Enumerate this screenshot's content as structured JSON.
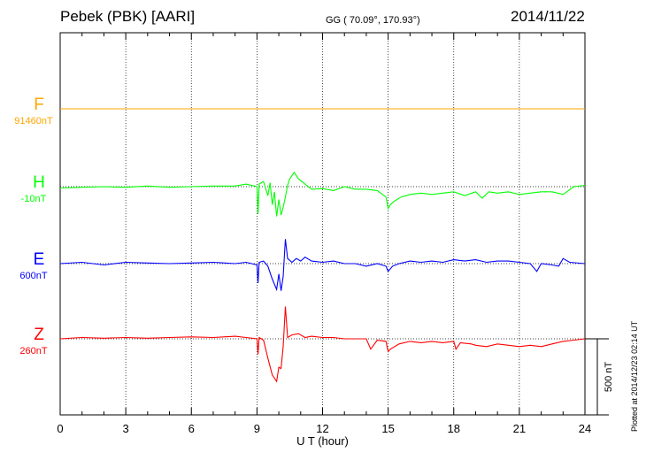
{
  "header": {
    "title": "Pebek (PBK)  [AARI]",
    "coordinates": "GG ( 70.09°, 170.93°)",
    "date": "2014/11/22"
  },
  "footer": {
    "plotted": "Plotted at 2014/12/23 02:14 UT"
  },
  "chart_data": {
    "type": "line",
    "title": "Pebek (PBK)  [AARI]",
    "xlabel": "U T (hour)",
    "ylabel": "",
    "xlim": [
      0,
      24
    ],
    "xticks": [
      0,
      3,
      6,
      9,
      12,
      15,
      18,
      21,
      24
    ],
    "grid": true,
    "scale_bar_label": "500 nT",
    "scale_bar_nT": 500,
    "series": [
      {
        "name": "F",
        "baseline_label": "91460nT",
        "color": "#ffa500",
        "points": [
          [
            0,
            0
          ],
          [
            24,
            0
          ]
        ]
      },
      {
        "name": "H",
        "baseline_label": "-10nT",
        "color": "#00ff00",
        "points": [
          [
            0,
            -10
          ],
          [
            1,
            -5
          ],
          [
            2,
            0
          ],
          [
            3,
            -5
          ],
          [
            4,
            5
          ],
          [
            5,
            -5
          ],
          [
            6,
            0
          ],
          [
            7,
            5
          ],
          [
            8,
            5
          ],
          [
            8.5,
            20
          ],
          [
            9,
            0
          ],
          [
            9.05,
            -210
          ],
          [
            9.1,
            20
          ],
          [
            9.3,
            40
          ],
          [
            9.5,
            -70
          ],
          [
            9.6,
            30
          ],
          [
            9.7,
            -140
          ],
          [
            9.8,
            -40
          ],
          [
            9.9,
            -230
          ],
          [
            10,
            -100
          ],
          [
            10.1,
            -220
          ],
          [
            10.2,
            -160
          ],
          [
            10.3,
            -80
          ],
          [
            10.4,
            10
          ],
          [
            10.5,
            60
          ],
          [
            10.7,
            110
          ],
          [
            10.9,
            60
          ],
          [
            11.2,
            20
          ],
          [
            11.5,
            -20
          ],
          [
            12,
            -15
          ],
          [
            12.5,
            -30
          ],
          [
            13,
            0
          ],
          [
            13.5,
            -20
          ],
          [
            14,
            -20
          ],
          [
            14.5,
            -30
          ],
          [
            14.9,
            -80
          ],
          [
            15.0,
            -170
          ],
          [
            15.1,
            -140
          ],
          [
            15.3,
            -110
          ],
          [
            15.6,
            -80
          ],
          [
            16,
            -60
          ],
          [
            16.5,
            -50
          ],
          [
            17,
            -60
          ],
          [
            17.5,
            -50
          ],
          [
            18,
            -40
          ],
          [
            18.5,
            -70
          ],
          [
            19,
            -40
          ],
          [
            19.3,
            -90
          ],
          [
            19.6,
            -40
          ],
          [
            20,
            -50
          ],
          [
            20.5,
            -40
          ],
          [
            21,
            -60
          ],
          [
            21.5,
            -50
          ],
          [
            22,
            -40
          ],
          [
            22.5,
            -40
          ],
          [
            23,
            -60
          ],
          [
            23.5,
            0
          ],
          [
            24,
            10
          ]
        ]
      },
      {
        "name": "E",
        "baseline_label": "600nT",
        "color": "#0000ff",
        "points": [
          [
            0,
            0
          ],
          [
            1,
            10
          ],
          [
            2,
            -10
          ],
          [
            3,
            10
          ],
          [
            4,
            5
          ],
          [
            5,
            0
          ],
          [
            6,
            5
          ],
          [
            7,
            10
          ],
          [
            8,
            0
          ],
          [
            8.5,
            10
          ],
          [
            9,
            -10
          ],
          [
            9.05,
            -150
          ],
          [
            9.1,
            10
          ],
          [
            9.3,
            20
          ],
          [
            9.5,
            -20
          ],
          [
            9.7,
            -120
          ],
          [
            9.9,
            -200
          ],
          [
            10.0,
            -80
          ],
          [
            10.1,
            -210
          ],
          [
            10.2,
            -100
          ],
          [
            10.3,
            190
          ],
          [
            10.4,
            40
          ],
          [
            10.6,
            10
          ],
          [
            10.8,
            40
          ],
          [
            11,
            20
          ],
          [
            11.2,
            50
          ],
          [
            11.5,
            20
          ],
          [
            12,
            10
          ],
          [
            12.5,
            20
          ],
          [
            13,
            0
          ],
          [
            13.5,
            0
          ],
          [
            14,
            -20
          ],
          [
            14.5,
            0
          ],
          [
            14.9,
            -20
          ],
          [
            15,
            -60
          ],
          [
            15.2,
            -20
          ],
          [
            15.5,
            0
          ],
          [
            16,
            20
          ],
          [
            16.5,
            10
          ],
          [
            17,
            20
          ],
          [
            17.5,
            10
          ],
          [
            18,
            30
          ],
          [
            18.5,
            20
          ],
          [
            19,
            30
          ],
          [
            19.5,
            10
          ],
          [
            20,
            20
          ],
          [
            20.5,
            20
          ],
          [
            21,
            10
          ],
          [
            21.5,
            0
          ],
          [
            21.8,
            -60
          ],
          [
            22,
            0
          ],
          [
            22.5,
            -10
          ],
          [
            22.8,
            -20
          ],
          [
            23,
            40
          ],
          [
            23.3,
            10
          ],
          [
            24,
            0
          ]
        ]
      },
      {
        "name": "Z",
        "baseline_label": "260nT",
        "color": "#ff0000",
        "points": [
          [
            0,
            0
          ],
          [
            1,
            10
          ],
          [
            2,
            5
          ],
          [
            3,
            10
          ],
          [
            4,
            5
          ],
          [
            5,
            10
          ],
          [
            6,
            15
          ],
          [
            7,
            10
          ],
          [
            8,
            20
          ],
          [
            8.5,
            10
          ],
          [
            9,
            0
          ],
          [
            9.05,
            -120
          ],
          [
            9.1,
            10
          ],
          [
            9.3,
            -10
          ],
          [
            9.5,
            -150
          ],
          [
            9.7,
            -280
          ],
          [
            9.9,
            -330
          ],
          [
            10.0,
            -220
          ],
          [
            10.1,
            -230
          ],
          [
            10.2,
            -60
          ],
          [
            10.3,
            250
          ],
          [
            10.4,
            10
          ],
          [
            10.6,
            30
          ],
          [
            10.9,
            40
          ],
          [
            11.2,
            10
          ],
          [
            11.5,
            20
          ],
          [
            12,
            10
          ],
          [
            12.5,
            10
          ],
          [
            13,
            0
          ],
          [
            13.5,
            0
          ],
          [
            14,
            0
          ],
          [
            14.2,
            -80
          ],
          [
            14.5,
            -10
          ],
          [
            14.9,
            -20
          ],
          [
            15,
            -100
          ],
          [
            15.1,
            -80
          ],
          [
            15.5,
            -40
          ],
          [
            16,
            -20
          ],
          [
            16.5,
            -30
          ],
          [
            17,
            -20
          ],
          [
            17.5,
            -30
          ],
          [
            18,
            -20
          ],
          [
            18.1,
            -80
          ],
          [
            18.3,
            -30
          ],
          [
            18.8,
            -40
          ],
          [
            19,
            -50
          ],
          [
            19.5,
            -60
          ],
          [
            20,
            -40
          ],
          [
            20.5,
            -50
          ],
          [
            21,
            -60
          ],
          [
            21.5,
            -50
          ],
          [
            22,
            -60
          ],
          [
            22.5,
            -40
          ],
          [
            23,
            -20
          ],
          [
            23.5,
            -10
          ],
          [
            24,
            0
          ]
        ]
      }
    ]
  }
}
